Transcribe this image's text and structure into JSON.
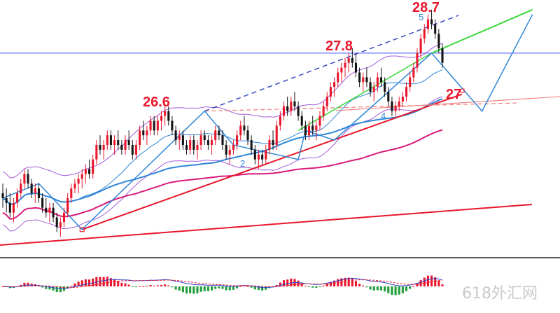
{
  "chart_data": {
    "type": "candlestick",
    "price_labels": [
      {
        "text": "26.6",
        "x": 46,
        "y": 26.6
      },
      {
        "text": "27.8",
        "x": 118,
        "y": 27.8
      },
      {
        "text": "28.7",
        "x": 149,
        "y": 28.7
      },
      {
        "text": "27",
        "x": 155,
        "y": 27.0
      }
    ],
    "wave_labels": [
      {
        "text": "2",
        "x": 84,
        "y": 25.55
      },
      {
        "text": "4",
        "x": 133,
        "y": 26.55
      },
      {
        "text": "5",
        "x": 147,
        "y": 28.55
      }
    ],
    "horizontal_line": 27.8,
    "candles": [
      [
        24.9,
        25.1,
        24.6,
        24.8
      ],
      [
        24.8,
        25.0,
        24.5,
        24.7
      ],
      [
        24.7,
        24.9,
        24.4,
        24.5
      ],
      [
        24.5,
        24.8,
        24.3,
        24.7
      ],
      [
        24.7,
        25.0,
        24.6,
        24.9
      ],
      [
        24.9,
        25.2,
        24.8,
        25.1
      ],
      [
        25.1,
        25.4,
        25.0,
        25.3
      ],
      [
        25.3,
        25.4,
        25.0,
        25.1
      ],
      [
        25.1,
        25.2,
        24.8,
        24.9
      ],
      [
        24.9,
        25.1,
        24.7,
        25.0
      ],
      [
        25.0,
        25.1,
        24.7,
        24.8
      ],
      [
        24.8,
        24.9,
        24.5,
        24.6
      ],
      [
        24.6,
        24.8,
        24.4,
        24.5
      ],
      [
        24.5,
        24.7,
        24.3,
        24.6
      ],
      [
        24.6,
        24.7,
        24.3,
        24.4
      ],
      [
        24.4,
        24.5,
        24.1,
        24.2
      ],
      [
        24.2,
        24.4,
        24.0,
        24.3
      ],
      [
        24.3,
        24.6,
        24.2,
        24.5
      ],
      [
        24.5,
        24.9,
        24.4,
        24.8
      ],
      [
        24.8,
        25.1,
        24.7,
        25.0
      ],
      [
        25.0,
        25.2,
        24.9,
        25.1
      ],
      [
        25.1,
        25.3,
        24.9,
        25.2
      ],
      [
        25.2,
        25.4,
        25.0,
        25.3
      ],
      [
        25.3,
        25.5,
        25.1,
        25.4
      ],
      [
        25.4,
        25.6,
        25.2,
        25.3
      ],
      [
        25.3,
        25.7,
        25.2,
        25.6
      ],
      [
        25.6,
        26.0,
        25.5,
        25.9
      ],
      [
        25.9,
        26.1,
        25.7,
        25.8
      ],
      [
        25.8,
        26.0,
        25.6,
        25.9
      ],
      [
        25.9,
        26.2,
        25.8,
        26.1
      ],
      [
        26.1,
        26.2,
        25.8,
        25.9
      ],
      [
        25.9,
        26.1,
        25.7,
        26.0
      ],
      [
        26.0,
        26.2,
        25.8,
        25.9
      ],
      [
        25.9,
        26.0,
        25.7,
        25.8
      ],
      [
        25.8,
        26.1,
        25.7,
        26.0
      ],
      [
        26.0,
        26.2,
        25.8,
        25.9
      ],
      [
        25.9,
        26.0,
        25.6,
        25.7
      ],
      [
        25.7,
        26.0,
        25.6,
        25.9
      ],
      [
        25.9,
        26.3,
        25.8,
        26.2
      ],
      [
        26.2,
        26.4,
        26.0,
        26.1
      ],
      [
        26.1,
        26.3,
        25.9,
        26.2
      ],
      [
        26.2,
        26.5,
        26.1,
        26.4
      ],
      [
        26.4,
        26.5,
        26.1,
        26.2
      ],
      [
        26.2,
        26.5,
        26.1,
        26.4
      ],
      [
        26.4,
        26.6,
        26.2,
        26.5
      ],
      [
        26.5,
        26.7,
        26.3,
        26.6
      ],
      [
        26.6,
        26.7,
        26.3,
        26.4
      ],
      [
        26.4,
        26.5,
        26.1,
        26.2
      ],
      [
        26.2,
        26.3,
        25.9,
        26.0
      ],
      [
        26.0,
        26.2,
        25.8,
        26.1
      ],
      [
        26.1,
        26.2,
        25.8,
        25.9
      ],
      [
        25.9,
        26.0,
        25.7,
        25.8
      ],
      [
        25.8,
        26.1,
        25.7,
        26.0
      ],
      [
        26.0,
        26.1,
        25.7,
        25.8
      ],
      [
        25.8,
        26.0,
        25.6,
        25.9
      ],
      [
        25.9,
        26.2,
        25.8,
        26.1
      ],
      [
        26.1,
        26.2,
        25.9,
        26.0
      ],
      [
        26.0,
        26.1,
        25.8,
        25.9
      ],
      [
        25.9,
        26.1,
        25.7,
        26.0
      ],
      [
        26.0,
        26.3,
        25.9,
        26.2
      ],
      [
        26.2,
        26.3,
        26.0,
        26.1
      ],
      [
        26.1,
        26.2,
        25.8,
        25.9
      ],
      [
        25.9,
        26.0,
        25.6,
        25.7
      ],
      [
        25.7,
        25.9,
        25.5,
        25.8
      ],
      [
        25.8,
        26.0,
        25.7,
        25.9
      ],
      [
        25.9,
        26.2,
        25.8,
        26.1
      ],
      [
        26.1,
        26.4,
        26.0,
        26.3
      ],
      [
        26.3,
        26.5,
        26.1,
        26.2
      ],
      [
        26.2,
        26.3,
        25.9,
        26.0
      ],
      [
        26.0,
        26.1,
        25.7,
        25.8
      ],
      [
        25.8,
        25.9,
        25.5,
        25.6
      ],
      [
        25.6,
        25.8,
        25.4,
        25.7
      ],
      [
        25.7,
        25.8,
        25.5,
        25.6
      ],
      [
        25.6,
        25.9,
        25.5,
        25.8
      ],
      [
        25.8,
        26.1,
        25.7,
        26.0
      ],
      [
        26.0,
        26.2,
        25.8,
        25.9
      ],
      [
        25.9,
        26.4,
        25.8,
        26.3
      ],
      [
        26.3,
        26.6,
        26.2,
        26.5
      ],
      [
        26.5,
        26.8,
        26.4,
        26.7
      ],
      [
        26.7,
        26.9,
        26.5,
        26.6
      ],
      [
        26.6,
        26.9,
        26.5,
        26.8
      ],
      [
        26.8,
        27.0,
        26.6,
        26.7
      ],
      [
        26.7,
        26.8,
        26.4,
        26.5
      ],
      [
        26.5,
        26.6,
        26.2,
        26.3
      ],
      [
        26.3,
        26.4,
        26.0,
        26.1
      ],
      [
        26.1,
        26.4,
        26.0,
        26.3
      ],
      [
        26.3,
        26.5,
        26.1,
        26.2
      ],
      [
        26.2,
        26.4,
        26.0,
        26.3
      ],
      [
        26.3,
        26.6,
        26.2,
        26.5
      ],
      [
        26.5,
        26.8,
        26.4,
        26.7
      ],
      [
        26.7,
        27.0,
        26.6,
        26.9
      ],
      [
        26.9,
        27.2,
        26.8,
        27.1
      ],
      [
        27.1,
        27.3,
        26.9,
        27.2
      ],
      [
        27.2,
        27.5,
        27.1,
        27.4
      ],
      [
        27.4,
        27.6,
        27.2,
        27.5
      ],
      [
        27.5,
        27.7,
        27.3,
        27.6
      ],
      [
        27.6,
        27.8,
        27.4,
        27.7
      ],
      [
        27.7,
        27.9,
        27.5,
        27.6
      ],
      [
        27.6,
        27.8,
        27.3,
        27.4
      ],
      [
        27.4,
        27.5,
        27.1,
        27.2
      ],
      [
        27.2,
        27.4,
        27.0,
        27.3
      ],
      [
        27.3,
        27.5,
        27.1,
        27.2
      ],
      [
        27.2,
        27.3,
        26.9,
        27.0
      ],
      [
        27.0,
        27.2,
        26.8,
        27.1
      ],
      [
        27.1,
        27.4,
        27.0,
        27.3
      ],
      [
        27.3,
        27.5,
        27.1,
        27.2
      ],
      [
        27.2,
        27.3,
        26.9,
        27.0
      ],
      [
        27.0,
        27.1,
        26.7,
        26.8
      ],
      [
        26.8,
        26.9,
        26.5,
        26.6
      ],
      [
        26.6,
        26.8,
        26.5,
        26.7
      ],
      [
        26.7,
        26.9,
        26.6,
        26.8
      ],
      [
        26.8,
        27.0,
        26.7,
        26.9
      ],
      [
        26.9,
        27.2,
        26.8,
        27.1
      ],
      [
        27.1,
        27.4,
        27.0,
        27.3
      ],
      [
        27.3,
        27.6,
        27.2,
        27.5
      ],
      [
        27.5,
        27.9,
        27.4,
        27.8
      ],
      [
        27.8,
        28.2,
        27.7,
        28.1
      ],
      [
        28.1,
        28.4,
        28.0,
        28.3
      ],
      [
        28.3,
        28.6,
        28.2,
        28.5
      ],
      [
        28.5,
        28.7,
        28.3,
        28.4
      ],
      [
        28.4,
        28.5,
        28.1,
        28.2
      ],
      [
        28.2,
        28.3,
        27.8,
        27.9
      ],
      [
        27.9,
        28.0,
        27.5,
        27.6
      ]
    ]
  }
}
